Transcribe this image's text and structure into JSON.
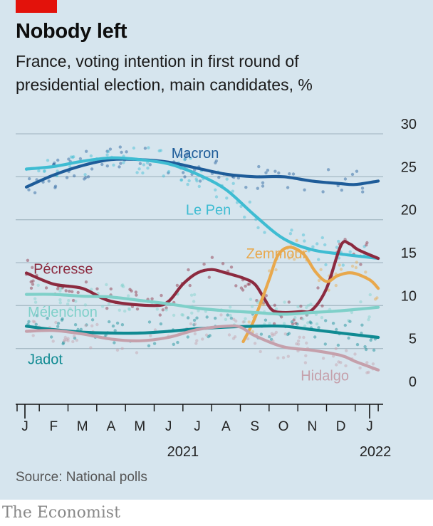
{
  "header": {
    "title": "Nobody left",
    "subtitle": "France, voting intention in first round of presidential election, main candidates, %"
  },
  "footer": {
    "source": "Source: National polls",
    "brand": "The Economist"
  },
  "chart_data": {
    "type": "line",
    "y_ticks": [
      0,
      5,
      10,
      15,
      20,
      25,
      30
    ],
    "ylim": [
      0,
      30
    ],
    "xlim": [
      0,
      12.4
    ],
    "x_ticks": [
      "J",
      "F",
      "M",
      "A",
      "M",
      "J",
      "J",
      "A",
      "S",
      "O",
      "N",
      "D",
      "J"
    ],
    "year_labels": [
      {
        "label": "2021",
        "x": 5.5
      },
      {
        "label": "2022",
        "x": 12.2
      }
    ],
    "grid": true,
    "series": [
      {
        "name": "Macron",
        "color": "#1e5c99",
        "label_pos": [
          5.1,
          27.2
        ],
        "points": [
          [
            0.05,
            23.8
          ],
          [
            1,
            25.2
          ],
          [
            2,
            26.3
          ],
          [
            3,
            27
          ],
          [
            4,
            27
          ],
          [
            5,
            26.7
          ],
          [
            6,
            26
          ],
          [
            7,
            25.3
          ],
          [
            8,
            25
          ],
          [
            9,
            25
          ],
          [
            10,
            24.5
          ],
          [
            11,
            24.2
          ],
          [
            11.5,
            24.1
          ],
          [
            12.3,
            24.5
          ]
        ]
      },
      {
        "name": "Le Pen",
        "color": "#3ebcd2",
        "label_pos": [
          5.6,
          20.6
        ],
        "points": [
          [
            0.05,
            25.9
          ],
          [
            1,
            26.2
          ],
          [
            2,
            26.8
          ],
          [
            3,
            27.2
          ],
          [
            4,
            27
          ],
          [
            5,
            26.5
          ],
          [
            6,
            25.3
          ],
          [
            7,
            23.5
          ],
          [
            8,
            20.5
          ],
          [
            9,
            17.8
          ],
          [
            10,
            16.5
          ],
          [
            11,
            16
          ],
          [
            12.3,
            15.5
          ]
        ]
      },
      {
        "name": "Pécresse",
        "color": "#8c2a3f",
        "label_pos": [
          0.3,
          13.7
        ],
        "points": [
          [
            0.05,
            13.8
          ],
          [
            1,
            12.5
          ],
          [
            2,
            12
          ],
          [
            3,
            10.5
          ],
          [
            4.5,
            10
          ],
          [
            5,
            10.5
          ],
          [
            5.5,
            12.5
          ],
          [
            6,
            13.8
          ],
          [
            6.5,
            14.2
          ],
          [
            7,
            13.8
          ],
          [
            7.6,
            13.2
          ],
          [
            8,
            12.5
          ],
          [
            8.3,
            11
          ],
          [
            8.6,
            9.5
          ],
          [
            9,
            9.2
          ],
          [
            9.6,
            9.3
          ],
          [
            10,
            9.5
          ],
          [
            10.5,
            12
          ],
          [
            11,
            17
          ],
          [
            11.3,
            17.2
          ],
          [
            11.6,
            16.5
          ],
          [
            12.3,
            15.5
          ]
        ]
      },
      {
        "name": "Zemmour",
        "color": "#e8a84c",
        "label_pos": [
          7.7,
          15.5
        ],
        "points": [
          [
            7.6,
            5.8
          ],
          [
            8,
            8.5
          ],
          [
            8.5,
            13
          ],
          [
            8.8,
            15.8
          ],
          [
            9.2,
            16.8
          ],
          [
            9.7,
            16
          ],
          [
            10.1,
            14
          ],
          [
            10.5,
            12.8
          ],
          [
            10.9,
            13.5
          ],
          [
            11.4,
            13.8
          ],
          [
            12,
            13
          ],
          [
            12.3,
            12
          ]
        ]
      },
      {
        "name": "Mélenchon",
        "color": "#7fd0c9",
        "label_pos": [
          0.1,
          8.7
        ],
        "points": [
          [
            0.05,
            11.3
          ],
          [
            1,
            11.3
          ],
          [
            2,
            11.1
          ],
          [
            3,
            11
          ],
          [
            4,
            10.6
          ],
          [
            5,
            10.2
          ],
          [
            6,
            9.7
          ],
          [
            7,
            9.4
          ],
          [
            8,
            9.2
          ],
          [
            9,
            9
          ],
          [
            10,
            9.2
          ],
          [
            11,
            9.4
          ],
          [
            12.3,
            9.8
          ]
        ]
      },
      {
        "name": "Jadot",
        "color": "#0f8a92",
        "label_pos": [
          0.1,
          3.2
        ],
        "points": [
          [
            0.05,
            7.6
          ],
          [
            1,
            7.2
          ],
          [
            2,
            6.9
          ],
          [
            3,
            6.8
          ],
          [
            4,
            6.8
          ],
          [
            5,
            7
          ],
          [
            6,
            7.3
          ],
          [
            7,
            7.5
          ],
          [
            8,
            7.6
          ],
          [
            9,
            7.6
          ],
          [
            10,
            7.2
          ],
          [
            11,
            6.8
          ],
          [
            12.3,
            6.3
          ]
        ]
      },
      {
        "name": "Hidalgo",
        "color": "#c5a0ab",
        "label_pos": [
          9.6,
          1.3
        ],
        "points": [
          [
            0.05,
            7
          ],
          [
            1,
            7.1
          ],
          [
            2,
            6.7
          ],
          [
            3,
            6.1
          ],
          [
            4,
            5.9
          ],
          [
            5,
            6.3
          ],
          [
            6,
            7.2
          ],
          [
            7,
            7.6
          ],
          [
            7.5,
            7.5
          ],
          [
            8,
            6.5
          ],
          [
            9,
            5.2
          ],
          [
            10,
            4.8
          ],
          [
            11,
            4.2
          ],
          [
            11.5,
            3.5
          ],
          [
            12.3,
            2.5
          ]
        ]
      }
    ]
  }
}
